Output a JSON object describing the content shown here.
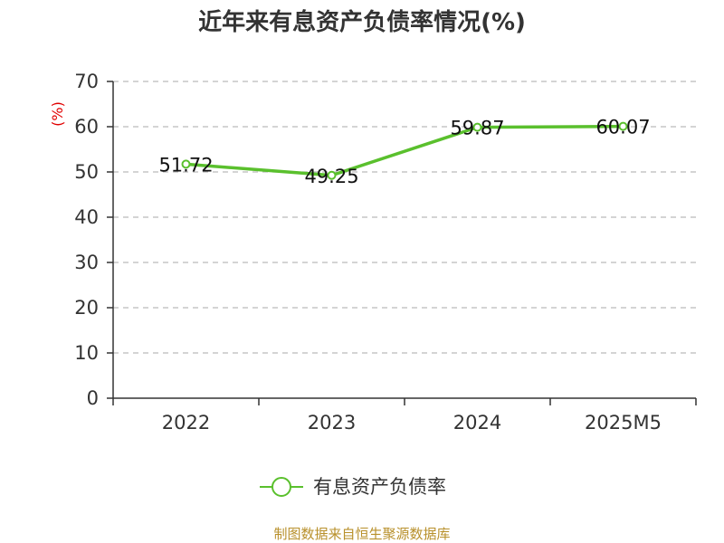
{
  "chart_data": {
    "type": "line",
    "title": "近年来有息资产负债率情况(%)",
    "ylabel": "(%)",
    "xlabel": "",
    "categories": [
      "2022",
      "2023",
      "2024",
      "2025M5"
    ],
    "ylim": [
      0,
      70
    ],
    "yticks": [
      0,
      10,
      20,
      30,
      40,
      50,
      60,
      70
    ],
    "grid": true,
    "legend_position": "bottom",
    "series": [
      {
        "name": "有息资产负债率",
        "values": [
          51.72,
          49.25,
          59.87,
          60.07
        ],
        "labels": [
          "51.72",
          "49.25",
          "59.87",
          "60.07"
        ]
      }
    ]
  },
  "colors": {
    "line": "#5ac02d",
    "grid": "#bbbbbb",
    "axis": "#333333",
    "ylabel": "#e00000",
    "source": "#b8902b"
  },
  "source_text": "制图数据来自恒生聚源数据库"
}
